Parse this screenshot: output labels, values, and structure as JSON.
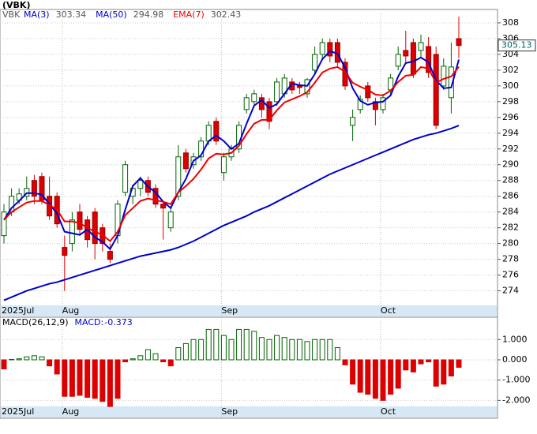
{
  "chart_data": [
    {
      "type": "candlestick",
      "title": "(VBK)",
      "symbol": "VBK",
      "categories": [
        "2025Jul",
        null,
        null,
        null,
        null,
        null,
        null,
        null,
        "Aug",
        null,
        null,
        null,
        null,
        null,
        null,
        null,
        null,
        null,
        null,
        null,
        null,
        null,
        null,
        null,
        null,
        null,
        null,
        null,
        null,
        "Sep",
        null,
        null,
        null,
        null,
        null,
        null,
        null,
        null,
        null,
        null,
        null,
        null,
        null,
        null,
        null,
        null,
        null,
        null,
        null,
        null,
        "Oct",
        null,
        null,
        null,
        null,
        null,
        null,
        null,
        null,
        null,
        null
      ],
      "open": [
        281,
        284,
        285.5,
        286,
        288,
        288.5,
        286,
        286,
        279.5,
        280,
        284,
        283,
        284,
        282,
        279,
        281,
        286.5,
        286,
        287,
        288,
        287,
        285,
        282,
        286,
        291.5,
        290,
        291,
        293,
        295.5,
        289,
        291,
        292,
        297,
        298,
        298.5,
        298,
        298,
        299,
        300.5,
        300,
        299,
        302,
        304,
        305.5,
        305.5,
        303,
        295,
        297,
        300,
        298,
        297,
        299.5,
        302.5,
        304.5,
        305.5,
        304.5,
        305,
        304,
        300,
        298.5,
        306
      ],
      "high": [
        285,
        287,
        287,
        288.5,
        288.7,
        289,
        288.5,
        286.5,
        281,
        284,
        285,
        283.5,
        284.5,
        282.5,
        280,
        285.5,
        290.5,
        287.5,
        288.5,
        288.5,
        287.5,
        285.5,
        284.5,
        292.5,
        292,
        291.5,
        293.5,
        295.5,
        296,
        291.5,
        292.5,
        295.5,
        299,
        299.5,
        299,
        298.5,
        301,
        301.5,
        301,
        300.5,
        301,
        305,
        306,
        306,
        306,
        303.5,
        297,
        298.8,
        300.5,
        298.5,
        299,
        301.5,
        305,
        307,
        306,
        306.5,
        306.2,
        305,
        303.5,
        305.5,
        308.8
      ],
      "low": [
        280,
        283.5,
        285,
        285.5,
        285,
        285,
        283,
        282,
        274,
        279,
        281,
        279.5,
        278,
        279,
        277.5,
        280,
        286,
        285,
        286,
        286,
        284.5,
        280.5,
        281.5,
        285.5,
        289,
        289.5,
        290.5,
        292.5,
        292.5,
        288,
        290.5,
        291.5,
        296.5,
        297.5,
        296,
        294.5,
        297.5,
        298.5,
        299,
        299,
        298.5,
        301.5,
        303.5,
        303,
        302.5,
        299.5,
        293,
        296.5,
        298,
        295,
        296.5,
        299,
        302,
        303,
        301,
        303.5,
        301,
        294.5,
        299.5,
        296.5,
        303.5
      ],
      "close": [
        284,
        286,
        286.3,
        287,
        286,
        285.5,
        283.5,
        282.5,
        278.5,
        283,
        281.8,
        280.5,
        280,
        280,
        278,
        285,
        290,
        287,
        288,
        286.5,
        285,
        284.5,
        284,
        291,
        289.5,
        291,
        293,
        295,
        293,
        291,
        292,
        295,
        298.5,
        299,
        297,
        295.5,
        300.5,
        301,
        299.5,
        299.8,
        300.8,
        304,
        305.5,
        303.8,
        303,
        300,
        296,
        298.3,
        298.5,
        297,
        298.5,
        301,
        304,
        303.8,
        301.5,
        305.5,
        301.7,
        295,
        302.5,
        302.4,
        305.13
      ],
      "up_color": "#006400",
      "down_color": "#dd0000",
      "series": [
        {
          "name": "MA(3)",
          "color": "#0000cc",
          "values": [
            283,
            284.5,
            285.4,
            286.4,
            286.4,
            286.2,
            285,
            283.8,
            281.5,
            281.3,
            281.1,
            281.8,
            280.8,
            280.2,
            279.3,
            281,
            284.3,
            287.3,
            288.3,
            287.2,
            286.5,
            285.3,
            284.5,
            286.5,
            288.2,
            290.5,
            291.2,
            293,
            293.7,
            293,
            292,
            292.7,
            295.2,
            297.5,
            298.2,
            297.2,
            297.7,
            299,
            300.3,
            300.1,
            300,
            301.5,
            303.4,
            304.4,
            304.1,
            302.3,
            299.7,
            298.1,
            297.6,
            297.9,
            298,
            298.8,
            301.2,
            302.9,
            303.1,
            303.6,
            303,
            300.7,
            299.7,
            299.8,
            303.34
          ]
        },
        {
          "name": "MA(50)",
          "color": "#0000cc",
          "values": [
            272.8,
            273.2,
            273.6,
            274,
            274.3,
            274.6,
            274.9,
            275.1,
            275.4,
            275.7,
            276,
            276.3,
            276.6,
            276.9,
            277.2,
            277.5,
            277.8,
            278.1,
            278.4,
            278.6,
            278.8,
            279,
            279.2,
            279.5,
            279.9,
            280.3,
            280.8,
            281.3,
            281.8,
            282.3,
            282.7,
            283.1,
            283.5,
            284,
            284.4,
            284.8,
            285.3,
            285.8,
            286.3,
            286.8,
            287.3,
            287.8,
            288.3,
            288.8,
            289.2,
            289.6,
            290,
            290.4,
            290.8,
            291.2,
            291.6,
            292,
            292.4,
            292.8,
            293.2,
            293.5,
            293.8,
            294,
            294.3,
            294.6,
            294.98
          ]
        },
        {
          "name": "EMA(7)",
          "color": "#ee0000",
          "values": [
            283,
            284,
            284.6,
            285.2,
            285.4,
            285.4,
            284.9,
            284.3,
            282.8,
            282.8,
            282.6,
            282,
            281.5,
            281.1,
            280.3,
            281.5,
            283.6,
            284.5,
            285.4,
            285.7,
            285.5,
            285.3,
            285,
            286.5,
            287.3,
            288.2,
            289.4,
            290.8,
            291.4,
            291.3,
            291.5,
            292.4,
            293.9,
            295.2,
            295.7,
            295.7,
            296.9,
            297.9,
            298.3,
            298.7,
            299.2,
            300.4,
            301.7,
            302.2,
            302.4,
            301.8,
            300.4,
            299.9,
            299.5,
            298.9,
            298.8,
            299.4,
            300.5,
            301.3,
            301.4,
            302.4,
            302.2,
            300.4,
            300.9,
            301.2,
            302.43
          ]
        }
      ],
      "ylim": [
        270.65,
        309.7
      ],
      "yticks": [
        274,
        276,
        278,
        280,
        282,
        284,
        286,
        288,
        290,
        292,
        294,
        296,
        298,
        300,
        302,
        304,
        306,
        308
      ],
      "grid": true
    },
    {
      "type": "bar",
      "title": "MACD(26,12,9)",
      "label": "MACD:",
      "categories": [
        "2025Jul",
        null,
        null,
        null,
        null,
        null,
        null,
        null,
        "Aug",
        null,
        null,
        null,
        null,
        null,
        null,
        null,
        null,
        null,
        null,
        null,
        null,
        null,
        null,
        null,
        null,
        null,
        null,
        null,
        null,
        "Sep",
        null,
        null,
        null,
        null,
        null,
        null,
        null,
        null,
        null,
        null,
        null,
        null,
        null,
        null,
        null,
        null,
        null,
        null,
        null,
        null,
        "Oct",
        null,
        null,
        null,
        null,
        null,
        null,
        null,
        null,
        null,
        null
      ],
      "values": [
        -0.45,
        0.02,
        0.05,
        0.15,
        0.2,
        0.15,
        -0.3,
        -0.7,
        -1.8,
        -1.8,
        -1.75,
        -1.85,
        -1.9,
        -2.05,
        -2.3,
        -1.9,
        -0.1,
        0.05,
        0.2,
        0.5,
        0.3,
        -0.1,
        -0.3,
        0.6,
        0.8,
        1,
        1,
        1.5,
        1.5,
        1.2,
        1,
        1.5,
        1.5,
        1.4,
        1.1,
        1,
        1.2,
        1.1,
        1,
        1,
        0.9,
        1,
        1,
        1,
        0.6,
        -0.25,
        -1.2,
        -1.6,
        -1.7,
        -1.9,
        -2,
        -1.7,
        -1.4,
        -0.5,
        -0.6,
        -0.2,
        -0.1,
        -1.3,
        -1.2,
        -0.8,
        -0.373
      ],
      "up_color": "#006400",
      "down_color": "#dd0000",
      "label_color": "#0000cc",
      "ylim": [
        -2.88,
        2.1
      ],
      "yticks": [
        {
          "value": 1,
          "label": "1.000"
        },
        {
          "value": 0,
          "label": "0.000"
        },
        {
          "value": -1,
          "label": "-1.000"
        },
        {
          "value": -2,
          "label": "-2.000"
        }
      ],
      "grid": true
    }
  ]
}
